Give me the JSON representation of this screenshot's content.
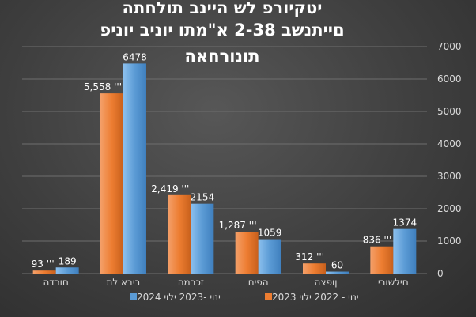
{
  "chart_data": {
    "type": "bar",
    "title_lines": [
      "יטקיורפ לש היינב תולחתה",
      "םייתנשב  2-38 א\"מתו יוניב יוניפ",
      "תונורחאה"
    ],
    "categories": [
      "םילשורי",
      "ןופצה",
      "הפיח",
      "זכרמה",
      "ביבא לת",
      "םורדה"
    ],
    "series": [
      {
        "name": "2023 ינוי - 2022 ילוי",
        "color": "#ed7d31",
        "values": [
          836,
          312,
          1287,
          2419,
          5558,
          93
        ],
        "labels": [
          "836 '''",
          "312 '''",
          "1,287 '''",
          "2,419 '''",
          "5,558 '''",
          "93 '''"
        ]
      },
      {
        "name": "2024 ינוי -2023 ילוי",
        "color": "#5b9bd5",
        "values": [
          1374,
          60,
          1059,
          2154,
          6478,
          189
        ],
        "labels": [
          "1374",
          "60",
          "1059",
          "2154",
          "6478",
          "189"
        ]
      }
    ],
    "yticks": [
      "0",
      "1000",
      "2000",
      "3000",
      "4000",
      "5000",
      "6000",
      "7000"
    ],
    "ylim": [
      0,
      7000
    ],
    "yaxis_side": "right",
    "grid": true,
    "legend_position": "bottom"
  }
}
